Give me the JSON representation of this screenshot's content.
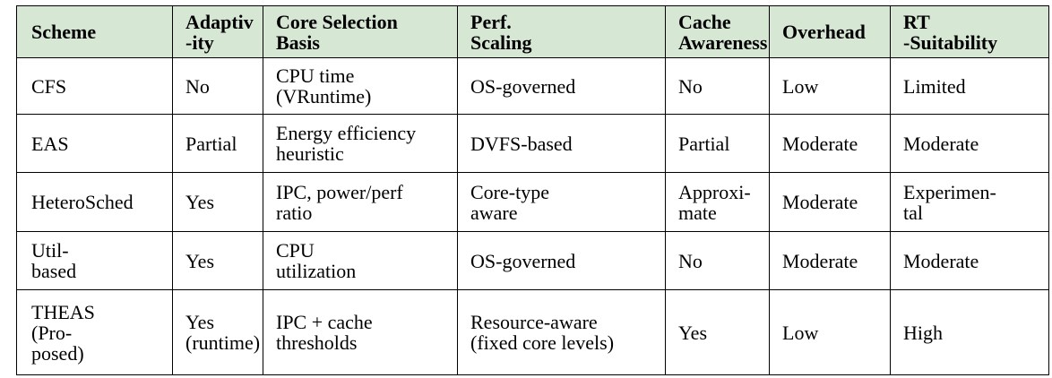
{
  "table": {
    "header": [
      [
        "Scheme"
      ],
      [
        "Adaptiv",
        "-ity"
      ],
      [
        "Core Selection",
        "Basis"
      ],
      [
        "Perf.",
        "Scaling"
      ],
      [
        "Cache",
        "Awareness"
      ],
      [
        "Overhead"
      ],
      [
        "RT",
        "-Suitability"
      ]
    ],
    "rows": [
      [
        [
          "CFS"
        ],
        [
          "No"
        ],
        [
          "CPU time",
          "(VRuntime)"
        ],
        [
          "OS-governed"
        ],
        [
          "No"
        ],
        [
          "Low"
        ],
        [
          "Limited"
        ]
      ],
      [
        [
          "EAS"
        ],
        [
          "Partial"
        ],
        [
          "Energy efficiency",
          "heuristic"
        ],
        [
          "DVFS-based"
        ],
        [
          "Partial"
        ],
        [
          "Moderate"
        ],
        [
          "Moderate"
        ]
      ],
      [
        [
          "HeteroSched"
        ],
        [
          "Yes"
        ],
        [
          "IPC, power/perf",
          "ratio"
        ],
        [
          "Core-type",
          "aware"
        ],
        [
          "Approxi-",
          "mate"
        ],
        [
          "Moderate"
        ],
        [
          "Experimen-",
          "tal"
        ]
      ],
      [
        [
          "Util-",
          "based"
        ],
        [
          "Yes"
        ],
        [
          "CPU",
          "utilization"
        ],
        [
          "OS-governed"
        ],
        [
          "No"
        ],
        [
          "Moderate"
        ],
        [
          "Moderate"
        ]
      ],
      [
        [
          "THEAS",
          "(Pro-",
          "posed)"
        ],
        [
          "Yes",
          "(runtime)"
        ],
        [
          "IPC + cache",
          "thresholds"
        ],
        [
          "Resource-aware",
          "(fixed core levels)"
        ],
        [
          "Yes"
        ],
        [
          "Low"
        ],
        [
          "High"
        ]
      ]
    ]
  }
}
